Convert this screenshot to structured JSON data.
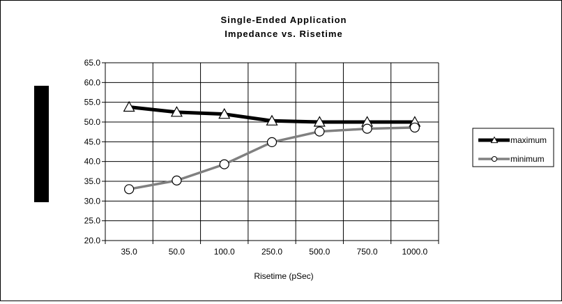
{
  "chart_data": {
    "type": "line",
    "title": "Single-Ended Application",
    "subtitle": "Impedance vs. Risetime",
    "xlabel": "Risetime (pSec)",
    "ylabel": "",
    "categories": [
      "35.0",
      "50.0",
      "100.0",
      "250.0",
      "500.0",
      "750.0",
      "1000.0"
    ],
    "ylim": [
      20.0,
      65.0
    ],
    "y_ticks": [
      "20.0",
      "25.0",
      "30.0",
      "35.0",
      "40.0",
      "45.0",
      "50.0",
      "55.0",
      "60.0",
      "65.0"
    ],
    "grid": true,
    "legend_position": "right",
    "series": [
      {
        "name": "maximum",
        "values": [
          53.8,
          52.5,
          52.0,
          50.3,
          50.0,
          50.0,
          50.0
        ],
        "color": "#000000",
        "marker": "triangle"
      },
      {
        "name": "minimum",
        "values": [
          33.0,
          35.2,
          39.3,
          44.9,
          47.6,
          48.3,
          48.6
        ],
        "color": "#808080",
        "marker": "circle"
      }
    ]
  }
}
